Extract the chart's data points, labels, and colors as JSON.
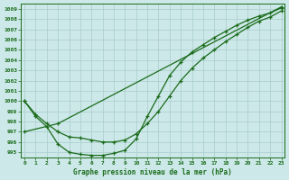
{
  "title": "Graphe pression niveau de la mer (hPa)",
  "bg_color": "#cce8e8",
  "grid_color": "#aacccc",
  "line_color": "#1a6b1a",
  "yticks": [
    995,
    996,
    997,
    998,
    999,
    1000,
    1001,
    1002,
    1003,
    1004,
    1005,
    1006,
    1007,
    1008,
    1009
  ],
  "xticks": [
    0,
    1,
    2,
    3,
    4,
    5,
    6,
    7,
    8,
    9,
    10,
    11,
    12,
    13,
    14,
    15,
    16,
    17,
    18,
    19,
    20,
    21,
    22,
    23
  ],
  "xlim": [
    -0.3,
    23.3
  ],
  "ylim": [
    994.5,
    1009.5
  ],
  "line1_x": [
    0,
    1,
    2,
    3,
    4,
    5,
    6,
    7,
    8,
    9,
    10,
    11,
    12,
    13,
    14,
    15,
    16,
    17,
    18,
    19,
    20,
    21,
    22,
    23
  ],
  "line1_y": [
    1000.0,
    998.7,
    997.8,
    997.0,
    996.5,
    996.4,
    996.2,
    996.0,
    996.0,
    996.2,
    996.8,
    997.8,
    999.0,
    1000.5,
    1002.0,
    1003.2,
    1004.2,
    1005.0,
    1005.8,
    1006.5,
    1007.2,
    1007.8,
    1008.2,
    1008.8
  ],
  "line2_x": [
    0,
    1,
    2,
    3,
    4,
    5,
    6,
    7,
    8,
    9,
    10,
    11,
    12,
    13,
    14,
    15,
    16,
    17,
    18,
    19,
    20,
    21,
    22,
    23
  ],
  "line2_y": [
    1000.0,
    998.5,
    997.5,
    995.8,
    995.0,
    994.8,
    994.7,
    994.7,
    994.9,
    995.2,
    996.3,
    998.5,
    1000.5,
    1002.5,
    1003.8,
    1004.8,
    1005.5,
    1006.2,
    1006.8,
    1007.4,
    1007.9,
    1008.3,
    1008.6,
    1009.1
  ],
  "line3_x": [
    0,
    3,
    23
  ],
  "line3_y": [
    997.0,
    997.8,
    1009.2
  ]
}
